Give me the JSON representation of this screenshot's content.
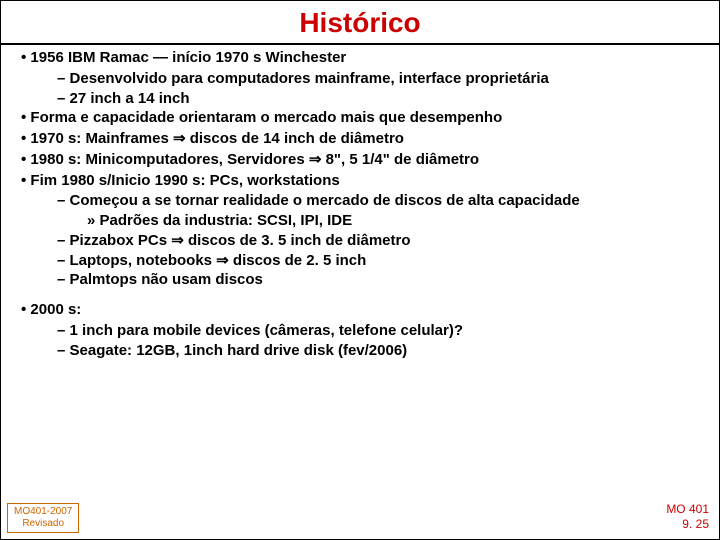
{
  "title": "Histórico",
  "colors": {
    "title": "#cc0000",
    "text": "#000000",
    "footer_left_border": "#cc6600",
    "footer_left_text": "#cc6600",
    "footer_right_text": "#cc0000",
    "background": "#ffffff"
  },
  "typography": {
    "font_family": "Comic Sans MS",
    "title_fontsize": 28,
    "body_fontsize": 15,
    "footer_fontsize": 11,
    "body_weight": "bold"
  },
  "bullets": {
    "b1": "1956 IBM Ramac — início 1970 s Winchester",
    "b1_1": "Desenvolvido para computadores mainframe, interface proprietária",
    "b1_2": " 27 inch a 14 inch",
    "b2": "Forma e capacidade orientaram o mercado mais que desempenho",
    "b3": "1970 s: Mainframes ⇒ discos de 14 inch de diâmetro",
    "b4": "1980 s: Minicomputadores, Servidores ⇒ 8\", 5 1/4\" de diâmetro",
    "b5": "Fim 1980 s/Inicio 1990 s: PCs, workstations",
    "b5_1": "Começou a se tornar realidade o  mercado de discos de alta capacidade",
    "b5_1_1": "Padrões da industria: SCSI, IPI, IDE",
    "b5_2": "Pizzabox PCs ⇒  discos de 3. 5 inch de diâmetro",
    "b5_3": "Laptops, notebooks ⇒ discos de 2. 5 inch",
    "b5_4": "Palmtops não usam discos",
    "b6": "2000 s:",
    "b6_1": "1 inch para mobile devices (câmeras, telefone celular)?",
    "b6_2": "Seagate: 12GB, 1inch hard drive disk (fev/2006)"
  },
  "footer": {
    "left_line1": "MO401-2007",
    "left_line2": "Revisado",
    "right_line1": "MO 401",
    "right_line2": "9. 25"
  }
}
